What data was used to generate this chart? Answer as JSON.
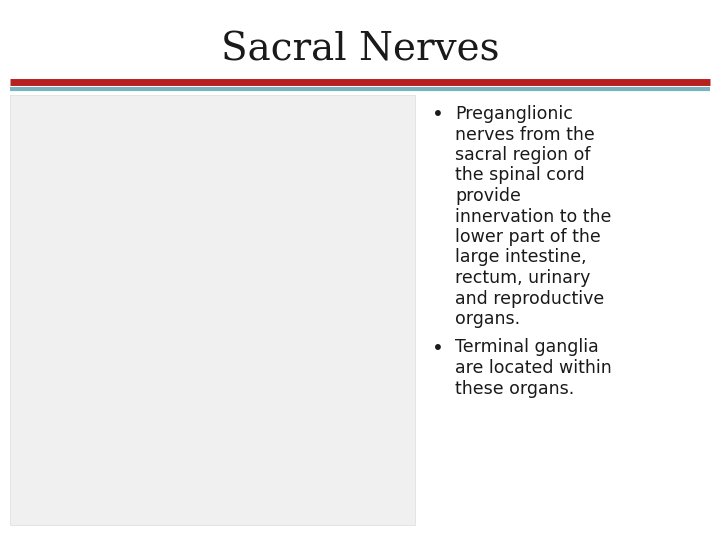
{
  "title": "Sacral Nerves",
  "title_fontsize": 28,
  "title_color": "#1a1a1a",
  "title_font": "serif",
  "bg_color": "#ffffff",
  "line1_color": "#b82020",
  "line2_color": "#7ab3be",
  "bullet1_lines": [
    "Preganglionic",
    "nerves from the",
    "sacral region of",
    "the spinal cord",
    "provide",
    "innervation to the",
    "lower part of the",
    "large intestine,",
    "rectum, urinary",
    "and reproductive",
    "organs."
  ],
  "bullet2_lines": [
    "Terminal ganglia",
    "are located within",
    "these organs."
  ],
  "bullet_fontsize": 12.5,
  "bullet_color": "#1a1a1a",
  "image_placeholder_color": "#f0f0f0"
}
